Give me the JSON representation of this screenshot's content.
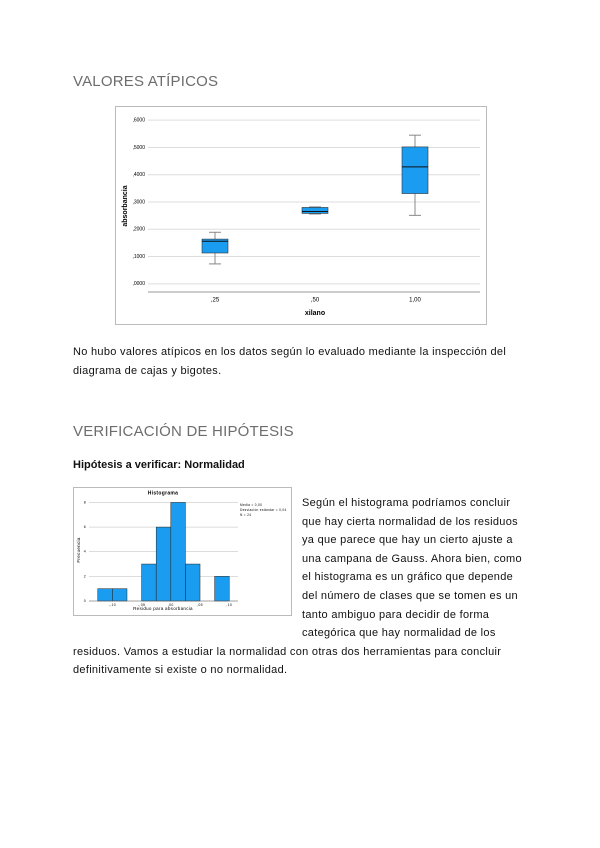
{
  "section1": {
    "title": "VALORES ATÍPICOS",
    "paragraph": "No hubo valores atípicos en los datos según lo evaluado mediante la inspección del diagrama de cajas y bigotes."
  },
  "section2": {
    "title": "VERIFICACIÓN DE HIPÓTESIS",
    "subtitle": "Hipótesis a verificar: Normalidad",
    "paragraph": "Según el histograma podríamos concluir que hay cierta normalidad de los residuos ya que parece que hay un cierto ajuste a una campana de Gauss. Ahora bien, como el histograma es un gráfico que depende del número de clases que se tomen es un tanto ambiguo para decidir de forma categórica que hay normalidad de los residuos. Vamos a estudiar la normalidad con otras dos herramientas para concluir definitivamente si existe o no normalidad."
  },
  "chart_data": [
    {
      "type": "box",
      "x_label": "xilano",
      "y_label": "absorbancia",
      "categories": [
        ",25",
        ",50",
        "1,00"
      ],
      "color": "#1a9cf0",
      "min": [
        0.073,
        0.256,
        0.251
      ],
      "q1": [
        0.113,
        0.258,
        0.331
      ],
      "median": [
        0.156,
        0.265,
        0.429
      ],
      "q3": [
        0.164,
        0.28,
        0.502
      ],
      "max": [
        0.189,
        0.282,
        0.545
      ],
      "ylim": [
        -0.03,
        0.63
      ],
      "yticks": [
        {
          "value": 0,
          "label": ",0000"
        },
        {
          "value": 0.1,
          "label": ",1000"
        },
        {
          "value": 0.2,
          "label": ",2000"
        },
        {
          "value": 0.3,
          "label": ",3000"
        },
        {
          "value": 0.4,
          "label": ",4000"
        },
        {
          "value": 0.5,
          "label": ",5000"
        },
        {
          "value": 0.6,
          "label": ",6000"
        }
      ],
      "grid": true
    },
    {
      "type": "histogram",
      "title": "Histograma",
      "x_label": "Residuo para absorbancia",
      "y_label": "Frecuencia",
      "bins": [
        -0.125,
        -0.1,
        -0.075,
        -0.05,
        -0.025,
        0,
        0.025,
        0.05,
        0.075,
        0.1
      ],
      "values": [
        1,
        1,
        0,
        3,
        6,
        8,
        3,
        0,
        2
      ],
      "color": "#1a9cf0",
      "xlim": [
        -0.14,
        0.115
      ],
      "ylim": [
        0,
        8.2
      ],
      "xticks": [
        {
          "value": -0.1,
          "label": "-,10"
        },
        {
          "value": -0.05,
          "label": "-,05"
        },
        {
          "value": 0,
          "label": ",00"
        },
        {
          "value": 0.05,
          "label": ",05"
        },
        {
          "value": 0.1,
          "label": ",10"
        }
      ],
      "yticks": [
        0,
        2,
        4,
        6,
        8
      ],
      "grid": true,
      "legend_text": [
        "Media = 0,00",
        "Desviación estándar = 0,04",
        "N = 24"
      ]
    }
  ]
}
